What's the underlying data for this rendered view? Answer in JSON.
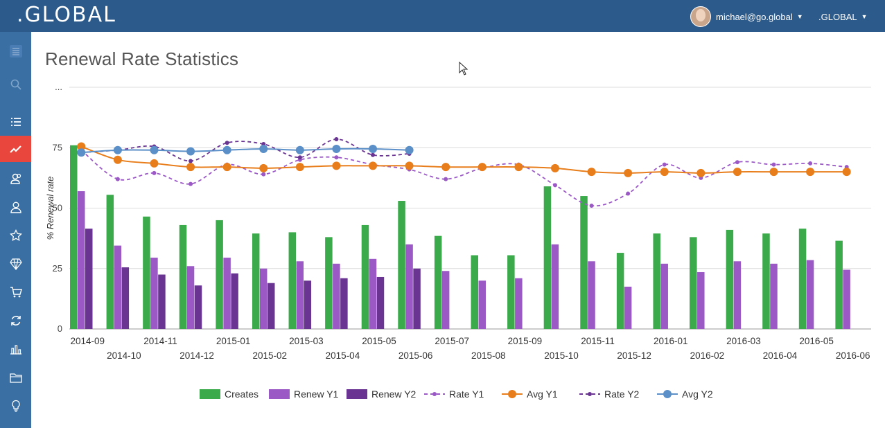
{
  "header": {
    "logo": ".GLOBAL",
    "user_email": "michael@go.global",
    "site_menu": ".GLOBAL",
    "brand_color": "#2c5a8a"
  },
  "sidebar": {
    "active_color": "#e9473d",
    "items": [
      {
        "icon": "menu-icon"
      },
      {
        "icon": "search-icon"
      },
      {
        "icon": "list-icon"
      },
      {
        "icon": "chart-line-icon",
        "active": true
      },
      {
        "icon": "users-icon"
      },
      {
        "icon": "user-icon"
      },
      {
        "icon": "star-icon"
      },
      {
        "icon": "diamond-icon"
      },
      {
        "icon": "cart-icon"
      },
      {
        "icon": "refresh-icon"
      },
      {
        "icon": "bar-chart-icon"
      },
      {
        "icon": "folder-icon"
      },
      {
        "icon": "lightbulb-icon"
      }
    ]
  },
  "page": {
    "title": "Renewal Rate Statistics"
  },
  "chart_data": {
    "type": "bar",
    "ylabel": "% Renewal rate",
    "ytick_labels": [
      "0",
      "25",
      "50",
      "75",
      "..."
    ],
    "yticks": [
      0,
      25,
      50,
      75,
      100
    ],
    "ylim": [
      0,
      100
    ],
    "grid": true,
    "legend_position": "bottom",
    "categories": [
      "2014-09",
      "2014-10",
      "2014-11",
      "2014-12",
      "2015-01",
      "2015-02",
      "2015-03",
      "2015-04",
      "2015-05",
      "2015-06",
      "2015-07",
      "2015-08",
      "2015-09",
      "2015-10",
      "2015-11",
      "2015-12",
      "2016-01",
      "2016-02",
      "2016-03",
      "2016-04",
      "2016-05",
      "2016-06"
    ],
    "series": [
      {
        "name": "Creates",
        "kind": "bar",
        "color": "#3aaa4a",
        "values": [
          76,
          55.5,
          46.5,
          43,
          45,
          39.5,
          40,
          38,
          43,
          53,
          38.5,
          30.5,
          30.5,
          59,
          55,
          31.5,
          39.5,
          38,
          41,
          39.5,
          41.5,
          36.5
        ]
      },
      {
        "name": "Renew Y1",
        "kind": "bar",
        "color": "#9b59c6",
        "values": [
          57,
          34.5,
          29.5,
          26,
          29.5,
          25,
          28,
          27,
          29,
          35,
          24,
          20,
          21,
          35,
          28,
          17.5,
          27,
          23.5,
          28,
          27,
          28.5,
          24.5
        ]
      },
      {
        "name": "Renew Y2",
        "kind": "bar",
        "color": "#6a3592",
        "values": [
          41.5,
          25.5,
          22.5,
          18,
          23,
          19,
          20,
          21,
          21.5,
          25,
          null,
          null,
          null,
          null,
          null,
          null,
          null,
          null,
          null,
          null,
          null,
          null
        ]
      },
      {
        "name": "Rate Y1",
        "kind": "line",
        "style": "dashed",
        "color": "#9b59c6",
        "values": [
          74,
          62,
          64.5,
          60,
          68,
          64,
          70,
          71,
          68,
          66,
          62,
          66.5,
          68,
          59.5,
          51,
          56,
          68,
          62.5,
          69,
          68,
          68.5,
          67
        ]
      },
      {
        "name": "Avg Y1",
        "kind": "line",
        "style": "solid",
        "color": "#e87e1b",
        "values": [
          75.5,
          70,
          68.5,
          67,
          67,
          66.5,
          67,
          67.5,
          67.5,
          67.5,
          67,
          67,
          67,
          66.5,
          65,
          64.5,
          65,
          64.5,
          65,
          65,
          65,
          65
        ]
      },
      {
        "name": "Rate Y2",
        "kind": "line",
        "style": "dashed",
        "color": "#6a3592",
        "values": [
          73,
          74,
          75.5,
          69.5,
          77,
          76.5,
          71,
          78.5,
          72,
          72.5,
          null,
          null,
          null,
          null,
          null,
          null,
          null,
          null,
          null,
          null,
          null,
          null
        ]
      },
      {
        "name": "Avg Y2",
        "kind": "line",
        "style": "solid",
        "color": "#5b8fc7",
        "values": [
          73,
          74,
          74,
          73.5,
          74,
          74.5,
          74,
          74.5,
          74.5,
          74,
          null,
          null,
          null,
          null,
          null,
          null,
          null,
          null,
          null,
          null,
          null,
          null
        ]
      }
    ]
  }
}
